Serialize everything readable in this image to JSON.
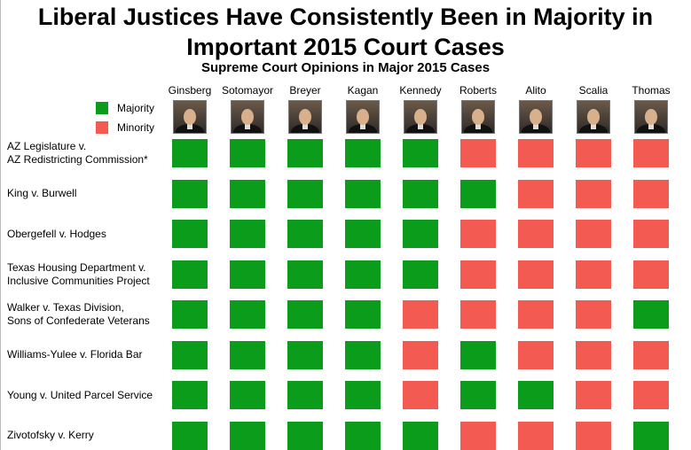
{
  "title": "Liberal Justices Have Consistently Been in Majority in\nImportant 2015 Court Cases",
  "chart_data": {
    "type": "heatmap",
    "title": "Supreme Court Opinions in Major 2015 Cases",
    "legend": [
      {
        "label": "Majority",
        "color": "#0a9c1a"
      },
      {
        "label": "Minority",
        "color": "#f25a52"
      }
    ],
    "legend_placement": "top-left",
    "justices": [
      "Ginsberg",
      "Sotomayor",
      "Breyer",
      "Kagan",
      "Kennedy",
      "Roberts",
      "Alito",
      "Scalia",
      "Thomas"
    ],
    "cases": [
      "AZ Legislature v.\nAZ Redistricting Commission*",
      "King v. Burwell",
      "Obergefell v. Hodges",
      "Texas Housing Department v.\nInclusive Communities Project",
      "Walker v. Texas Division,\nSons of Confederate Veterans",
      "Williams-Yulee v. Florida Bar",
      "Young v. United Parcel Service",
      "Zivotofsky v. Kerry"
    ],
    "values": [
      [
        "Majority",
        "Majority",
        "Majority",
        "Majority",
        "Majority",
        "Minority",
        "Minority",
        "Minority",
        "Minority"
      ],
      [
        "Majority",
        "Majority",
        "Majority",
        "Majority",
        "Majority",
        "Majority",
        "Minority",
        "Minority",
        "Minority"
      ],
      [
        "Majority",
        "Majority",
        "Majority",
        "Majority",
        "Majority",
        "Minority",
        "Minority",
        "Minority",
        "Minority"
      ],
      [
        "Majority",
        "Majority",
        "Majority",
        "Majority",
        "Majority",
        "Minority",
        "Minority",
        "Minority",
        "Minority"
      ],
      [
        "Majority",
        "Majority",
        "Majority",
        "Majority",
        "Minority",
        "Minority",
        "Minority",
        "Minority",
        "Majority"
      ],
      [
        "Majority",
        "Majority",
        "Majority",
        "Majority",
        "Minority",
        "Majority",
        "Minority",
        "Minority",
        "Minority"
      ],
      [
        "Majority",
        "Majority",
        "Majority",
        "Majority",
        "Minority",
        "Majority",
        "Majority",
        "Minority",
        "Minority"
      ],
      [
        "Majority",
        "Majority",
        "Majority",
        "Majority",
        "Majority",
        "Minority",
        "Minority",
        "Minority",
        "Majority"
      ]
    ]
  }
}
